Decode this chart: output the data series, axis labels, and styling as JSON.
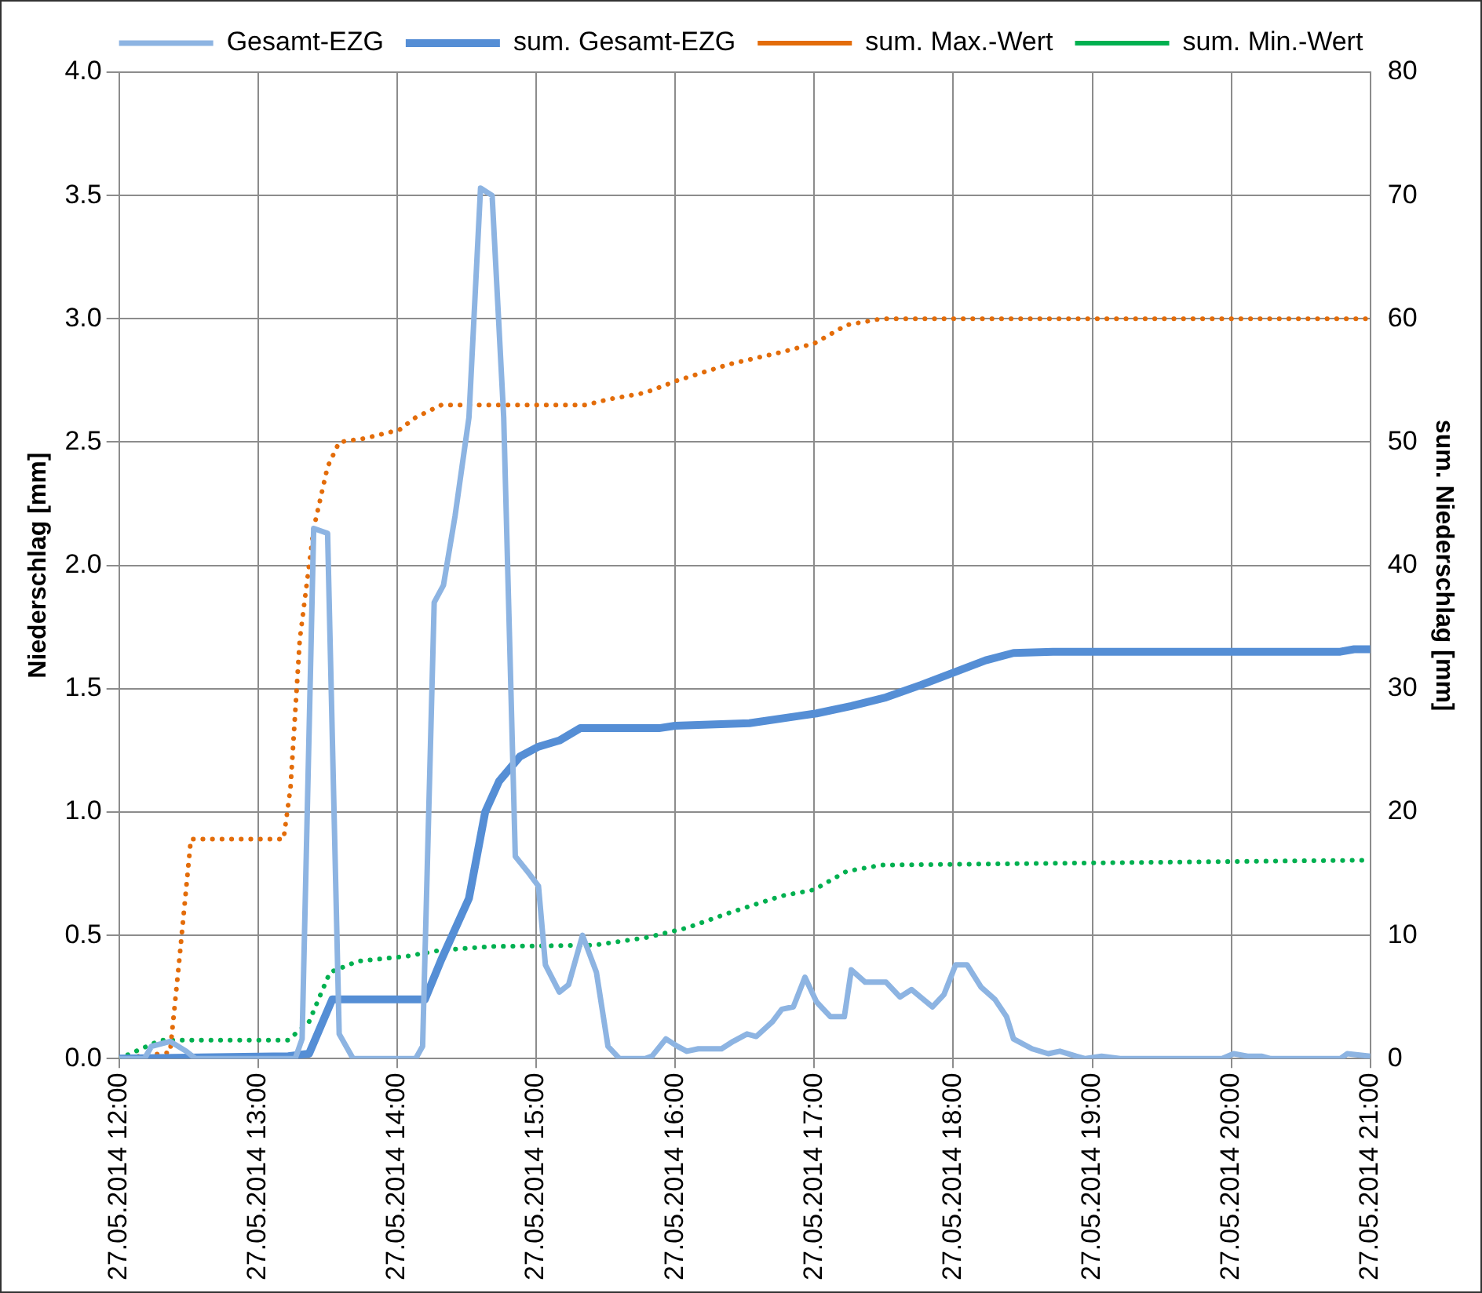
{
  "chart_data": {
    "type": "line",
    "ylabel": "Niederschlag [mm]",
    "y2label": "sum. Niederschlag [mm]",
    "legend": "top",
    "grid": true,
    "marker": "none",
    "xlim": [
      "2014-05-27T12:00",
      "2014-05-27T21:00"
    ],
    "xticks": [
      {
        "value": "2014-05-27T12:00",
        "label": "27.05.2014 12:00"
      },
      {
        "value": "2014-05-27T13:00",
        "label": "27.05.2014 13:00"
      },
      {
        "value": "2014-05-27T14:00",
        "label": "27.05.2014 14:00"
      },
      {
        "value": "2014-05-27T15:00",
        "label": "27.05.2014 15:00"
      },
      {
        "value": "2014-05-27T16:00",
        "label": "27.05.2014 16:00"
      },
      {
        "value": "2014-05-27T17:00",
        "label": "27.05.2014 17:00"
      },
      {
        "value": "2014-05-27T18:00",
        "label": "27.05.2014 18:00"
      },
      {
        "value": "2014-05-27T19:00",
        "label": "27.05.2014 19:00"
      },
      {
        "value": "2014-05-27T20:00",
        "label": "27.05.2014 20:00"
      },
      {
        "value": "2014-05-27T21:00",
        "label": "27.05.2014 21:00"
      }
    ],
    "ylim": [
      0,
      4
    ],
    "yticks": [
      {
        "value": 0,
        "label": "0.0"
      },
      {
        "value": 0.5,
        "label": "0.5"
      },
      {
        "value": 1,
        "label": "1.0"
      },
      {
        "value": 1.5,
        "label": "1.5"
      },
      {
        "value": 2,
        "label": "2.0"
      },
      {
        "value": 2.5,
        "label": "2.5"
      },
      {
        "value": 3,
        "label": "3.0"
      },
      {
        "value": 3.5,
        "label": "3.5"
      },
      {
        "value": 4,
        "label": "4.0"
      }
    ],
    "y2lim": [
      0,
      80
    ],
    "y2ticks": [
      0,
      10,
      20,
      30,
      40,
      50,
      60,
      70,
      80
    ],
    "series": [
      {
        "name": "Gesamt-EZG",
        "color": "#8db4e2",
        "line_style": "solid",
        "x": [
          "2014-05-27T12:00",
          "2014-05-27T12:11",
          "2014-05-27T12:14",
          "2014-05-27T12:22",
          "2014-05-27T12:29",
          "2014-05-27T12:33",
          "2014-05-27T13:16",
          "2014-05-27T13:19",
          "2014-05-27T13:24",
          "2014-05-27T13:30",
          "2014-05-27T13:35",
          "2014-05-27T13:41",
          "2014-05-27T14:08",
          "2014-05-27T14:11",
          "2014-05-27T14:16",
          "2014-05-27T14:20",
          "2014-05-27T14:25",
          "2014-05-27T14:31",
          "2014-05-27T14:36",
          "2014-05-27T14:41",
          "2014-05-27T14:46",
          "2014-05-27T14:51",
          "2014-05-27T14:57",
          "2014-05-27T15:01",
          "2014-05-27T15:04",
          "2014-05-27T15:10",
          "2014-05-27T15:14",
          "2014-05-27T15:20",
          "2014-05-27T15:26",
          "2014-05-27T15:31",
          "2014-05-27T15:36",
          "2014-05-27T15:47",
          "2014-05-27T15:50",
          "2014-05-27T15:56",
          "2014-05-27T16:01",
          "2014-05-27T16:05",
          "2014-05-27T16:10",
          "2014-05-27T16:20",
          "2014-05-27T16:25",
          "2014-05-27T16:31",
          "2014-05-27T16:35",
          "2014-05-27T16:42",
          "2014-05-27T16:46",
          "2014-05-27T16:51",
          "2014-05-27T16:56",
          "2014-05-27T17:01",
          "2014-05-27T17:07",
          "2014-05-27T17:13",
          "2014-05-27T17:16",
          "2014-05-27T17:22",
          "2014-05-27T17:31",
          "2014-05-27T17:37",
          "2014-05-27T17:42",
          "2014-05-27T17:51",
          "2014-05-27T17:56",
          "2014-05-27T18:01",
          "2014-05-27T18:06",
          "2014-05-27T18:12",
          "2014-05-27T18:18",
          "2014-05-27T18:23",
          "2014-05-27T18:26",
          "2014-05-27T18:34",
          "2014-05-27T18:41",
          "2014-05-27T18:46",
          "2014-05-27T18:53",
          "2014-05-27T18:57",
          "2014-05-27T19:04",
          "2014-05-27T19:12",
          "2014-05-27T19:56",
          "2014-05-27T20:01",
          "2014-05-27T20:07",
          "2014-05-27T20:13",
          "2014-05-27T20:17",
          "2014-05-27T20:47",
          "2014-05-27T20:50",
          "2014-05-27T21:00"
        ],
        "values": [
          0,
          0,
          0.05,
          0.07,
          0.03,
          0,
          0,
          0.08,
          2.15,
          2.13,
          0.1,
          0,
          0,
          0.05,
          1.85,
          1.92,
          2.2,
          2.6,
          3.53,
          3.5,
          2.6,
          0.82,
          0.75,
          0.7,
          0.38,
          0.27,
          0.3,
          0.5,
          0.35,
          0.05,
          0,
          0,
          0.01,
          0.08,
          0.05,
          0.03,
          0.04,
          0.04,
          0.07,
          0.1,
          0.09,
          0.15,
          0.2,
          0.21,
          0.33,
          0.23,
          0.17,
          0.17,
          0.36,
          0.31,
          0.31,
          0.25,
          0.28,
          0.21,
          0.26,
          0.38,
          0.38,
          0.29,
          0.24,
          0.17,
          0.08,
          0.04,
          0.02,
          0.03,
          0.01,
          0,
          0.01,
          0,
          0,
          0.02,
          0.01,
          0.01,
          0,
          0,
          0.02,
          0.01
        ]
      },
      {
        "name": "sum. Gesamt-EZG",
        "color": "#558ed5",
        "line_style": "solid",
        "axis": "y2",
        "x": [
          "2014-05-27T12:00",
          "2014-05-27T13:13",
          "2014-05-27T13:22",
          "2014-05-27T13:32",
          "2014-05-27T14:12",
          "2014-05-27T14:19",
          "2014-05-27T14:31",
          "2014-05-27T14:38",
          "2014-05-27T14:44",
          "2014-05-27T14:53",
          "2014-05-27T15:01",
          "2014-05-27T15:10",
          "2014-05-27T15:19",
          "2014-05-27T15:25",
          "2014-05-27T15:53",
          "2014-05-27T16:00",
          "2014-05-27T16:32",
          "2014-05-27T17:01",
          "2014-05-27T17:16",
          "2014-05-27T17:31",
          "2014-05-27T17:46",
          "2014-05-27T18:00",
          "2014-05-27T18:14",
          "2014-05-27T18:26",
          "2014-05-27T18:43",
          "2014-05-27T20:47",
          "2014-05-27T20:53",
          "2014-05-27T21:00"
        ],
        "values": [
          0,
          0.2,
          0.4,
          4.8,
          4.8,
          8,
          13,
          20,
          22.5,
          24.5,
          25.3,
          25.8,
          26.8,
          26.8,
          26.8,
          27.0,
          27.2,
          28,
          28.6,
          29.3,
          30.3,
          31.3,
          32.3,
          32.9,
          33.0,
          33.0,
          33.2,
          33.2
        ]
      },
      {
        "name": "sum. Max.-Wert",
        "color": "#e36c09",
        "line_style": "dotted",
        "axis": "y2",
        "x": [
          "2014-05-27T12:00",
          "2014-05-27T12:22",
          "2014-05-27T12:26",
          "2014-05-27T12:31",
          "2014-05-27T13:11",
          "2014-05-27T13:14",
          "2014-05-27T13:18",
          "2014-05-27T13:24",
          "2014-05-27T13:30",
          "2014-05-27T13:35",
          "2014-05-27T13:46",
          "2014-05-27T14:01",
          "2014-05-27T14:08",
          "2014-05-27T14:19",
          "2014-05-27T14:48",
          "2014-05-27T15:21",
          "2014-05-27T15:32",
          "2014-05-27T15:47",
          "2014-05-27T16:01",
          "2014-05-27T16:23",
          "2014-05-27T16:46",
          "2014-05-27T17:00",
          "2014-05-27T17:14",
          "2014-05-27T17:29",
          "2014-05-27T21:00"
        ],
        "values": [
          0,
          0.5,
          8,
          17.8,
          17.8,
          22,
          34,
          43,
          48,
          50,
          50.3,
          51,
          52,
          53,
          53,
          53,
          53.5,
          54,
          55,
          56.3,
          57.3,
          58,
          59.5,
          60,
          60
        ]
      },
      {
        "name": "sum. Min.-Wert",
        "color": "#00b050",
        "line_style": "dotted",
        "axis": "y2",
        "x": [
          "2014-05-27T12:00",
          "2014-05-27T12:18",
          "2014-05-27T13:13",
          "2014-05-27T13:22",
          "2014-05-27T13:31",
          "2014-05-27T13:43",
          "2014-05-27T14:04",
          "2014-05-27T14:19",
          "2014-05-27T14:41",
          "2014-05-27T15:25",
          "2014-05-27T15:47",
          "2014-05-27T16:05",
          "2014-05-27T16:23",
          "2014-05-27T16:46",
          "2014-05-27T17:00",
          "2014-05-27T17:14",
          "2014-05-27T17:29",
          "2014-05-27T21:00"
        ],
        "values": [
          0,
          1.5,
          1.5,
          3,
          7,
          7.9,
          8.3,
          8.8,
          9.1,
          9.2,
          9.8,
          10.6,
          11.8,
          13.2,
          13.7,
          15.2,
          15.7,
          16.1
        ]
      }
    ]
  }
}
